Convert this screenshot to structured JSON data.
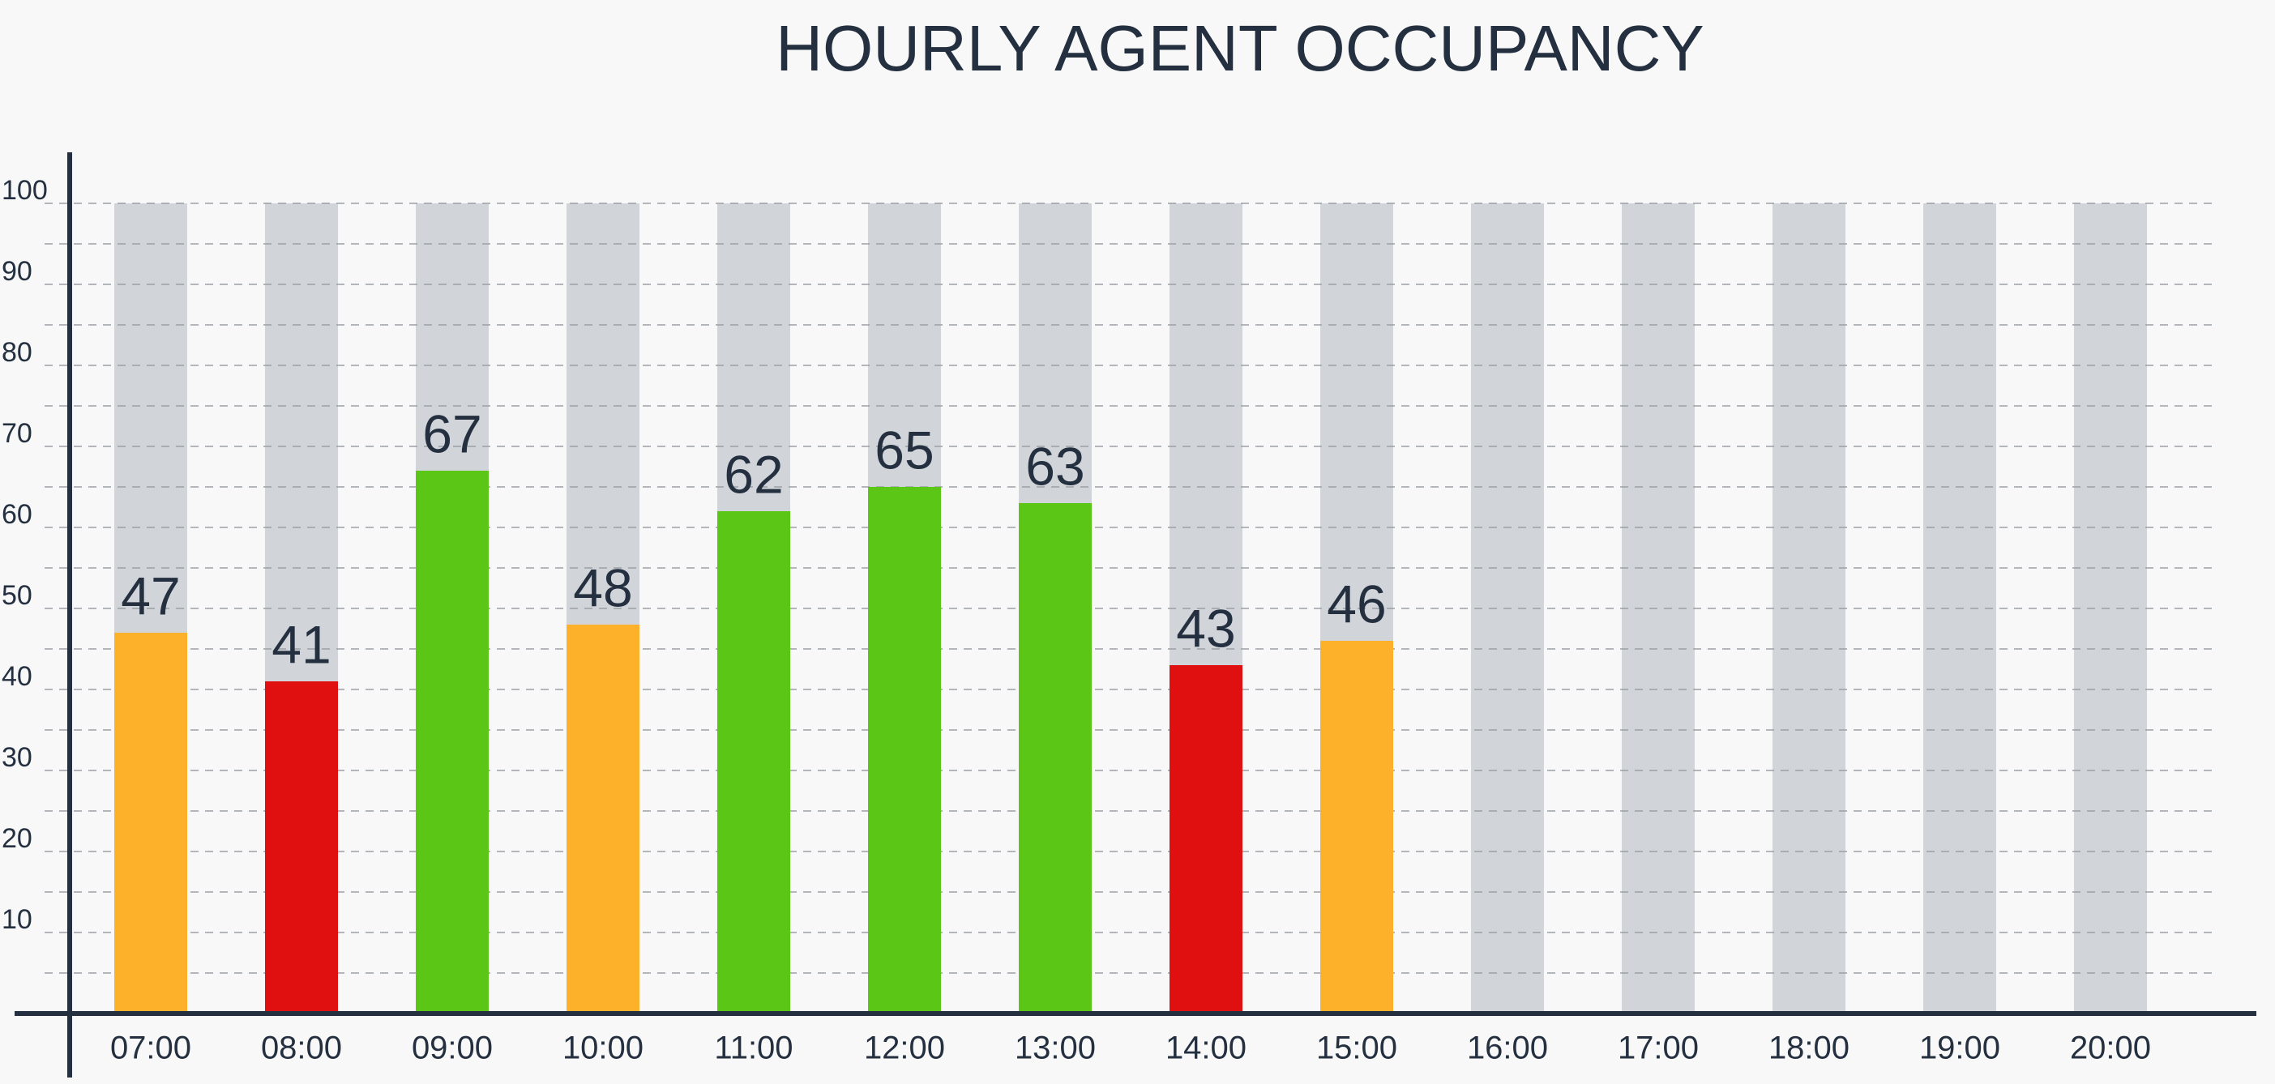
{
  "chart_data": {
    "type": "bar",
    "title": "HOURLY AGENT OCCUPANCY",
    "categories": [
      "07:00",
      "08:00",
      "09:00",
      "10:00",
      "11:00",
      "12:00",
      "13:00",
      "14:00",
      "15:00",
      "16:00",
      "17:00",
      "18:00",
      "19:00",
      "20:00"
    ],
    "values": [
      47,
      41,
      67,
      48,
      62,
      65,
      63,
      43,
      46,
      null,
      null,
      null,
      null,
      null
    ],
    "colors": [
      "#fdb02a",
      "#e01010",
      "#5bc615",
      "#fdb02a",
      "#5bc615",
      "#5bc615",
      "#5bc615",
      "#e01010",
      "#fdb02a",
      null,
      null,
      null,
      null,
      null
    ],
    "track_color": "#d1d5d9",
    "ylim": [
      0,
      100
    ],
    "yticks": [
      10,
      20,
      30,
      40,
      50,
      60,
      70,
      80,
      90,
      100
    ],
    "grid": true
  }
}
